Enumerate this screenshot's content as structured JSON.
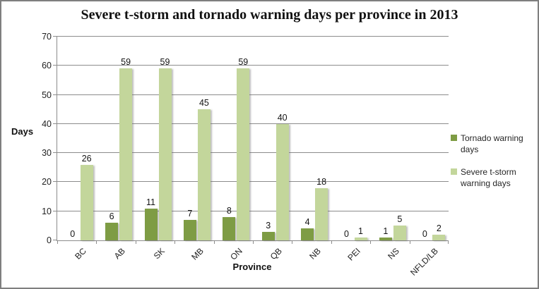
{
  "chart_data": {
    "type": "bar",
    "title": "Severe t-storm and tornado warning days per province in 2013",
    "xlabel": "Province",
    "ylabel": "Days",
    "categories": [
      "BC",
      "AB",
      "SK",
      "MB",
      "ON",
      "QB",
      "NB",
      "PEI",
      "NS",
      "NFLD/LB"
    ],
    "series": [
      {
        "name": "Tornado warning days",
        "color": "#7E9C44",
        "values": [
          0,
          6,
          11,
          7,
          8,
          3,
          4,
          0,
          1,
          0
        ]
      },
      {
        "name": "Severe t-storm warning days",
        "color": "#C3D69B",
        "values": [
          26,
          59,
          59,
          45,
          59,
          40,
          18,
          1,
          5,
          2
        ]
      }
    ],
    "ylim": [
      0,
      70
    ],
    "yticks": [
      0,
      10,
      20,
      30,
      40,
      50,
      60,
      70
    ],
    "grid": true,
    "legend_position": "right",
    "data_labels": true
  },
  "colors": {
    "gridline": "#8C8C8C",
    "axis": "#8C8C8C",
    "frame_border": "#7F7F7F",
    "text": "#1F1F1F"
  }
}
